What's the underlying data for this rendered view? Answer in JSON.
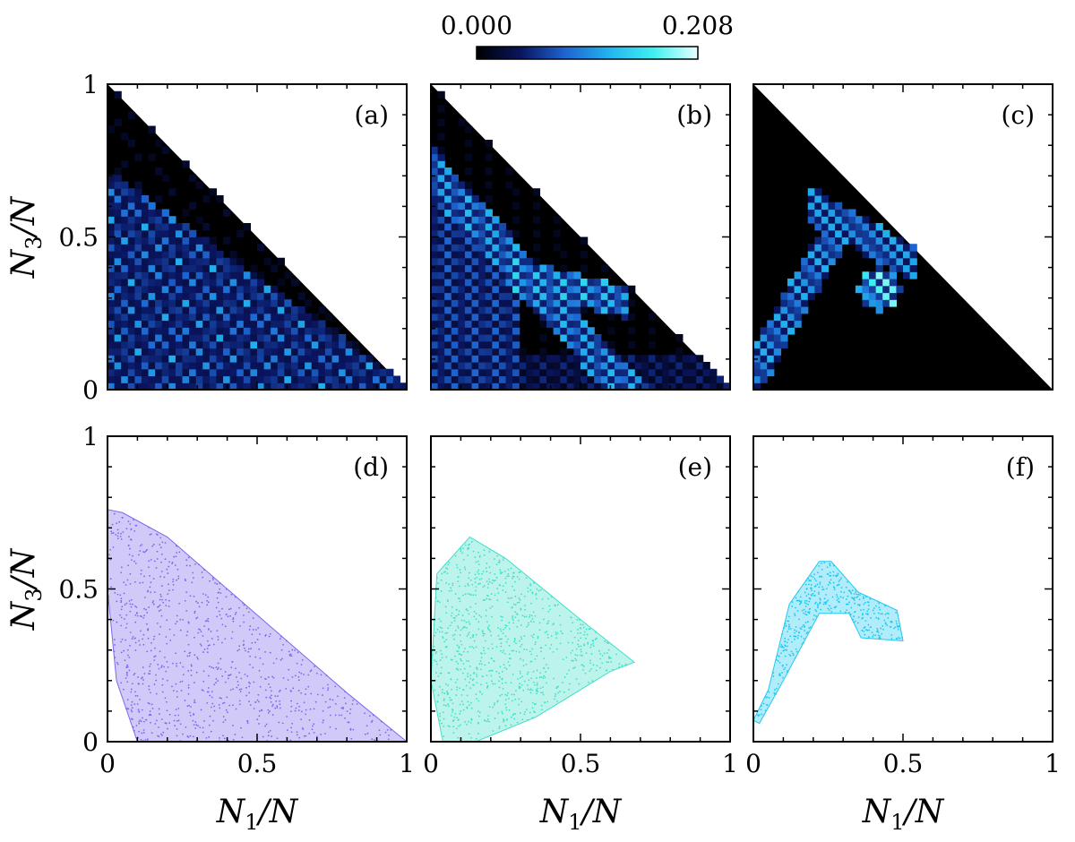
{
  "colorbar": {
    "min_label": "0.000",
    "max_label": "0.208",
    "min": 0.0,
    "max": 0.208,
    "colors": [
      "#000000",
      "#0a1560",
      "#1e64d0",
      "#22b4f0",
      "#40f0f0",
      "#e8ffff"
    ]
  },
  "axes": {
    "xlabel_num": "N",
    "xlabel_sub": "1",
    "xlabel_den": "/N",
    "ylabel_num": "N",
    "ylabel_sub": "3",
    "ylabel_den": "/N",
    "xticks": [
      "0",
      "0.5",
      "1"
    ],
    "yticks": [
      "0",
      "0.5",
      "1"
    ]
  },
  "panels": [
    {
      "label": "(a)",
      "kind": "heatmap",
      "variant": "a"
    },
    {
      "label": "(b)",
      "kind": "heatmap",
      "variant": "b"
    },
    {
      "label": "(c)",
      "kind": "heatmap",
      "variant": "c"
    },
    {
      "label": "(d)",
      "kind": "scatter",
      "color": "#7b68ee",
      "variant": "d"
    },
    {
      "label": "(e)",
      "kind": "scatter",
      "color": "#40e0c8",
      "variant": "e"
    },
    {
      "label": "(f)",
      "kind": "scatter",
      "color": "#20c8f0",
      "variant": "f"
    }
  ],
  "chart_data": [
    {
      "type": "heatmap",
      "panel": "(a)",
      "xlabel": "N1/N",
      "ylabel": "N3/N",
      "xlim": [
        0,
        1
      ],
      "ylim": [
        0,
        1
      ],
      "vmin": 0.0,
      "vmax": 0.208,
      "description_region": "triangle N1+N3<=1"
    },
    {
      "type": "heatmap",
      "panel": "(b)",
      "xlabel": "N1/N",
      "ylabel": "N3/N",
      "xlim": [
        0,
        1
      ],
      "ylim": [
        0,
        1
      ],
      "vmin": 0.0,
      "vmax": 0.208
    },
    {
      "type": "heatmap",
      "panel": "(c)",
      "xlabel": "N1/N",
      "ylabel": "N3/N",
      "xlim": [
        0,
        1
      ],
      "ylim": [
        0,
        1
      ],
      "vmin": 0.0,
      "vmax": 0.208
    },
    {
      "type": "scatter",
      "panel": "(d)",
      "xlabel": "N1/N",
      "ylabel": "N3/N",
      "xlim": [
        0,
        1
      ],
      "ylim": [
        0,
        1
      ],
      "outline": [
        [
          0.0,
          0.76
        ],
        [
          0.05,
          0.75
        ],
        [
          0.2,
          0.67
        ],
        [
          0.4,
          0.5
        ],
        [
          0.6,
          0.33
        ],
        [
          0.8,
          0.16
        ],
        [
          1.0,
          0.0
        ],
        [
          0.1,
          0.0
        ],
        [
          0.03,
          0.2
        ],
        [
          0.0,
          0.5
        ]
      ]
    },
    {
      "type": "scatter",
      "panel": "(e)",
      "xlabel": "N1/N",
      "ylabel": "N3/N",
      "xlim": [
        0,
        1
      ],
      "ylim": [
        0,
        1
      ],
      "outline": [
        [
          0.04,
          0.0
        ],
        [
          0.0,
          0.2
        ],
        [
          0.02,
          0.55
        ],
        [
          0.13,
          0.67
        ],
        [
          0.25,
          0.6
        ],
        [
          0.5,
          0.4
        ],
        [
          0.68,
          0.26
        ],
        [
          0.6,
          0.23
        ],
        [
          0.35,
          0.08
        ],
        [
          0.15,
          0.0
        ]
      ]
    },
    {
      "type": "scatter",
      "panel": "(f)",
      "xlabel": "N1/N",
      "ylabel": "N3/N",
      "xlim": [
        0,
        1
      ],
      "ylim": [
        0,
        1
      ],
      "outline": [
        [
          0.0,
          0.07
        ],
        [
          0.05,
          0.17
        ],
        [
          0.12,
          0.45
        ],
        [
          0.22,
          0.59
        ],
        [
          0.26,
          0.59
        ],
        [
          0.35,
          0.49
        ],
        [
          0.48,
          0.43
        ],
        [
          0.5,
          0.33
        ],
        [
          0.36,
          0.34
        ],
        [
          0.32,
          0.42
        ],
        [
          0.22,
          0.42
        ],
        [
          0.1,
          0.2
        ],
        [
          0.02,
          0.06
        ]
      ]
    }
  ]
}
